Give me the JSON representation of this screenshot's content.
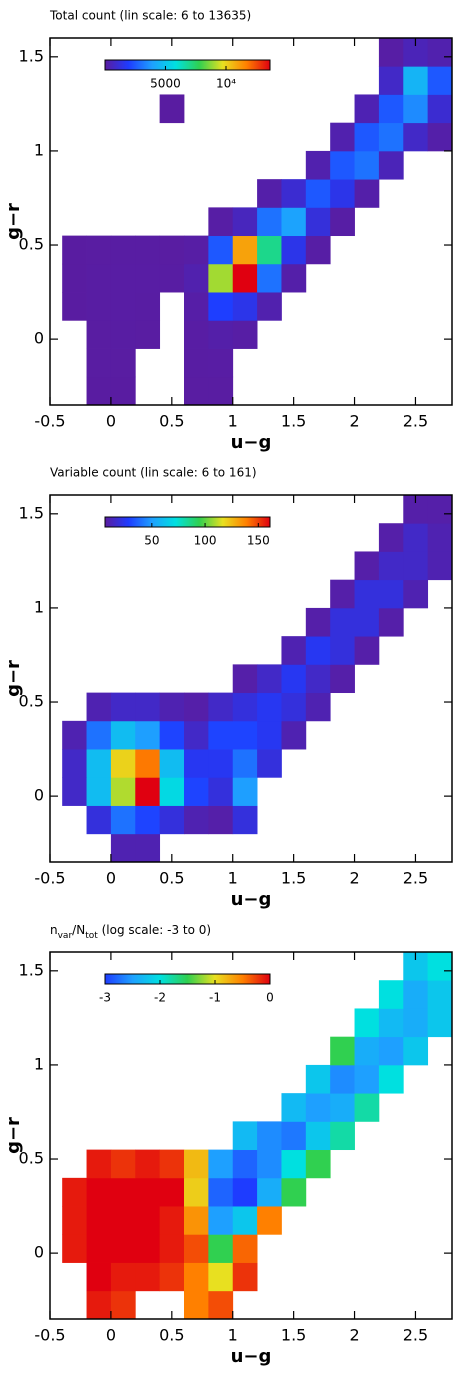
{
  "chart_data": [
    {
      "type": "heatmap",
      "title": "Total count (lin scale: 6 to 13635)",
      "xlabel": "u−g",
      "ylabel": "g−r",
      "xlim": [
        -0.5,
        2.8
      ],
      "ylim": [
        -0.35,
        1.6
      ],
      "xticks": [
        -0.5,
        0,
        0.5,
        1,
        1.5,
        2,
        2.5
      ],
      "yticks": [
        0,
        0.5,
        1,
        1.5
      ],
      "colormap": [
        "#5a1ca0",
        "#1e3cff",
        "#1ea0ff",
        "#00e0e0",
        "#30d050",
        "#e8e020",
        "#ff8000",
        "#e00010"
      ],
      "colorbar": {
        "clim": [
          6,
          13635
        ],
        "ticks": [
          5000,
          {
            "value": 10000,
            "label": "10⁴"
          }
        ]
      },
      "x": [
        -0.4,
        -0.2,
        0,
        0.2,
        0.4,
        0.6,
        0.8,
        1.0,
        1.2,
        1.4,
        1.6,
        1.8,
        2.0,
        2.2,
        2.4,
        2.6,
        2.8
      ],
      "y": [
        -0.35,
        -0.2,
        -0.05,
        0.1,
        0.25,
        0.4,
        0.55,
        0.7,
        0.85,
        1.0,
        1.15,
        1.3,
        1.45,
        1.6
      ],
      "z": [
        [
          null,
          30,
          30,
          null,
          null,
          40,
          50,
          null,
          null,
          null,
          null,
          null,
          null,
          null,
          null,
          null
        ],
        [
          null,
          40,
          40,
          null,
          null,
          60,
          80,
          null,
          null,
          null,
          null,
          null,
          null,
          null,
          null,
          null
        ],
        [
          null,
          50,
          60,
          40,
          null,
          80,
          200,
          100,
          null,
          null,
          null,
          null,
          null,
          null,
          null,
          null
        ],
        [
          30,
          60,
          80,
          60,
          null,
          150,
          2000,
          1500,
          300,
          null,
          null,
          null,
          null,
          null,
          null,
          null
        ],
        [
          30,
          60,
          80,
          80,
          60,
          300,
          9000,
          13635,
          3000,
          200,
          null,
          null,
          null,
          null,
          null,
          null
        ],
        [
          30,
          50,
          60,
          60,
          50,
          100,
          2500,
          11000,
          7000,
          1500,
          100,
          null,
          null,
          null,
          null,
          null
        ],
        [
          null,
          null,
          null,
          null,
          null,
          null,
          100,
          600,
          3000,
          4000,
          1200,
          100,
          null,
          null,
          null,
          null
        ],
        [
          null,
          null,
          null,
          null,
          null,
          null,
          null,
          null,
          200,
          1000,
          2500,
          1500,
          200,
          null,
          null,
          null
        ],
        [
          null,
          null,
          null,
          null,
          null,
          null,
          null,
          null,
          null,
          null,
          300,
          2500,
          3000,
          500,
          null,
          null
        ],
        [
          null,
          null,
          null,
          null,
          null,
          null,
          null,
          null,
          null,
          null,
          null,
          300,
          2500,
          3000,
          800,
          200
        ],
        [
          null,
          null,
          null,
          null,
          30,
          null,
          null,
          null,
          null,
          null,
          null,
          null,
          400,
          2500,
          3500,
          1000
        ],
        [
          null,
          null,
          null,
          null,
          null,
          null,
          null,
          null,
          null,
          null,
          null,
          null,
          null,
          800,
          4500,
          2500
        ],
        [
          null,
          null,
          null,
          null,
          null,
          null,
          null,
          null,
          null,
          null,
          null,
          null,
          null,
          100,
          500,
          300
        ]
      ]
    },
    {
      "type": "heatmap",
      "title": "Variable count (lin scale: 6 to 161)",
      "xlabel": "u−g",
      "ylabel": "g−r",
      "xlim": [
        -0.5,
        2.8
      ],
      "ylim": [
        -0.35,
        1.6
      ],
      "xticks": [
        -0.5,
        0,
        0.5,
        1,
        1.5,
        2,
        2.5
      ],
      "yticks": [
        0,
        0.5,
        1,
        1.5
      ],
      "colormap": [
        "#5a1ca0",
        "#1e3cff",
        "#1ea0ff",
        "#00e0e0",
        "#30d050",
        "#e8e020",
        "#ff8000",
        "#e00010"
      ],
      "colorbar": {
        "clim": [
          6,
          161
        ],
        "ticks": [
          50,
          100,
          150
        ]
      },
      "x": [
        -0.4,
        -0.2,
        0,
        0.2,
        0.4,
        0.6,
        0.8,
        1.0,
        1.2,
        1.4,
        1.6,
        1.8,
        2.0,
        2.2,
        2.4,
        2.6,
        2.8
      ],
      "y": [
        -0.35,
        -0.2,
        -0.05,
        0.1,
        0.25,
        0.4,
        0.55,
        0.7,
        0.85,
        1.0,
        1.15,
        1.3,
        1.45,
        1.6
      ],
      "z": [
        [
          null,
          null,
          10,
          10,
          null,
          null,
          null,
          null,
          null,
          null,
          null,
          null,
          null,
          null,
          null,
          null
        ],
        [
          null,
          20,
          40,
          30,
          20,
          10,
          8,
          20,
          null,
          null,
          null,
          null,
          null,
          null,
          null,
          null
        ],
        [
          15,
          60,
          110,
          161,
          70,
          30,
          20,
          50,
          null,
          null,
          null,
          null,
          null,
          null,
          null,
          null
        ],
        [
          15,
          60,
          120,
          140,
          60,
          25,
          25,
          40,
          20,
          null,
          null,
          null,
          null,
          null,
          null,
          null
        ],
        [
          10,
          40,
          60,
          50,
          30,
          15,
          30,
          30,
          25,
          10,
          null,
          null,
          null,
          null,
          null,
          null
        ],
        [
          null,
          10,
          15,
          15,
          10,
          8,
          15,
          20,
          25,
          20,
          10,
          null,
          null,
          null,
          null,
          null
        ],
        [
          null,
          null,
          null,
          null,
          null,
          null,
          null,
          8,
          15,
          25,
          15,
          8,
          null,
          null,
          null,
          null
        ],
        [
          null,
          null,
          null,
          null,
          null,
          null,
          null,
          null,
          null,
          10,
          25,
          20,
          8,
          null,
          null,
          null
        ],
        [
          null,
          null,
          null,
          null,
          null,
          null,
          null,
          null,
          null,
          null,
          8,
          20,
          20,
          8,
          null,
          null
        ],
        [
          null,
          null,
          null,
          null,
          null,
          null,
          null,
          null,
          null,
          null,
          null,
          8,
          20,
          20,
          10,
          null
        ],
        [
          null,
          null,
          null,
          null,
          null,
          null,
          null,
          null,
          null,
          null,
          null,
          null,
          8,
          15,
          15,
          10
        ],
        [
          null,
          null,
          null,
          null,
          null,
          null,
          null,
          null,
          null,
          null,
          null,
          null,
          null,
          8,
          15,
          10
        ],
        [
          null,
          null,
          null,
          null,
          null,
          null,
          null,
          null,
          null,
          null,
          null,
          null,
          null,
          null,
          8,
          8
        ]
      ]
    },
    {
      "type": "heatmap",
      "title_parts": [
        {
          "text": "n"
        },
        {
          "text": "var",
          "sub": true
        },
        {
          "text": "/N"
        },
        {
          "text": "tot",
          "sub": true
        },
        {
          "text": " (log scale: -3 to 0)"
        }
      ],
      "xlabel": "u−g",
      "ylabel": "g−r",
      "xlim": [
        -0.5,
        2.8
      ],
      "ylim": [
        -0.35,
        1.6
      ],
      "xticks": [
        -0.5,
        0,
        0.5,
        1,
        1.5,
        2,
        2.5
      ],
      "yticks": [
        0,
        0.5,
        1,
        1.5
      ],
      "colormap": [
        "#1e3cff",
        "#1ea0ff",
        "#00e0e0",
        "#30d050",
        "#e8e020",
        "#ff8000",
        "#e00010"
      ],
      "colorbar": {
        "clim": [
          -3,
          0
        ],
        "ticks": [
          -3,
          -2,
          -1,
          0
        ]
      },
      "x": [
        -0.4,
        -0.2,
        0,
        0.2,
        0.4,
        0.6,
        0.8,
        1.0,
        1.2,
        1.4,
        1.6,
        1.8,
        2.0,
        2.2,
        2.4,
        2.6,
        2.8
      ],
      "y": [
        -0.35,
        -0.2,
        -0.05,
        0.1,
        0.25,
        0.4,
        0.55,
        0.7,
        0.85,
        1.0,
        1.15,
        1.3,
        1.45,
        1.6
      ],
      "z": [
        [
          null,
          -0.1,
          -0.2,
          null,
          null,
          -0.5,
          -0.3,
          null,
          null,
          null,
          null,
          null,
          null,
          null,
          null,
          null
        ],
        [
          null,
          0,
          -0.1,
          -0.1,
          -0.2,
          -0.5,
          -1.0,
          -0.2,
          null,
          null,
          null,
          null,
          null,
          null,
          null,
          null
        ],
        [
          -0.1,
          0,
          0,
          0,
          -0.1,
          -0.3,
          -1.5,
          -0.4,
          null,
          null,
          null,
          null,
          null,
          null,
          null,
          null
        ],
        [
          -0.1,
          0,
          0,
          0,
          -0.1,
          -0.6,
          -2.5,
          -2.2,
          -0.5,
          null,
          null,
          null,
          null,
          null,
          null,
          null
        ],
        [
          -0.1,
          0,
          0,
          0,
          0,
          -0.9,
          -2.8,
          -3,
          -2.4,
          -1.5,
          null,
          null,
          null,
          null,
          null,
          null
        ],
        [
          null,
          -0.1,
          -0.2,
          -0.1,
          -0.2,
          -0.8,
          -2.5,
          -2.8,
          -2.6,
          -2.0,
          -1.5,
          null,
          null,
          null,
          null,
          null
        ],
        [
          null,
          null,
          null,
          null,
          null,
          null,
          null,
          -2.3,
          -2.6,
          -2.7,
          -2.2,
          -1.8,
          null,
          null,
          null,
          null
        ],
        [
          null,
          null,
          null,
          null,
          null,
          null,
          null,
          null,
          null,
          -2.3,
          -2.5,
          -2.4,
          -1.8,
          null,
          null,
          null
        ],
        [
          null,
          null,
          null,
          null,
          null,
          null,
          null,
          null,
          null,
          null,
          -2.2,
          -2.6,
          -2.5,
          -2.0,
          null,
          null
        ],
        [
          null,
          null,
          null,
          null,
          null,
          null,
          null,
          null,
          null,
          null,
          null,
          -1.5,
          -2.4,
          -2.5,
          -2.2,
          null
        ],
        [
          null,
          null,
          null,
          null,
          null,
          null,
          null,
          null,
          null,
          null,
          null,
          null,
          -2.0,
          -2.3,
          -2.4,
          -2.2
        ],
        [
          null,
          null,
          null,
          null,
          null,
          null,
          null,
          null,
          null,
          null,
          null,
          null,
          null,
          -2.0,
          -2.4,
          -2.2
        ],
        [
          null,
          null,
          null,
          null,
          null,
          null,
          null,
          null,
          null,
          null,
          null,
          null,
          null,
          null,
          -2.2,
          -2.0
        ]
      ]
    }
  ]
}
